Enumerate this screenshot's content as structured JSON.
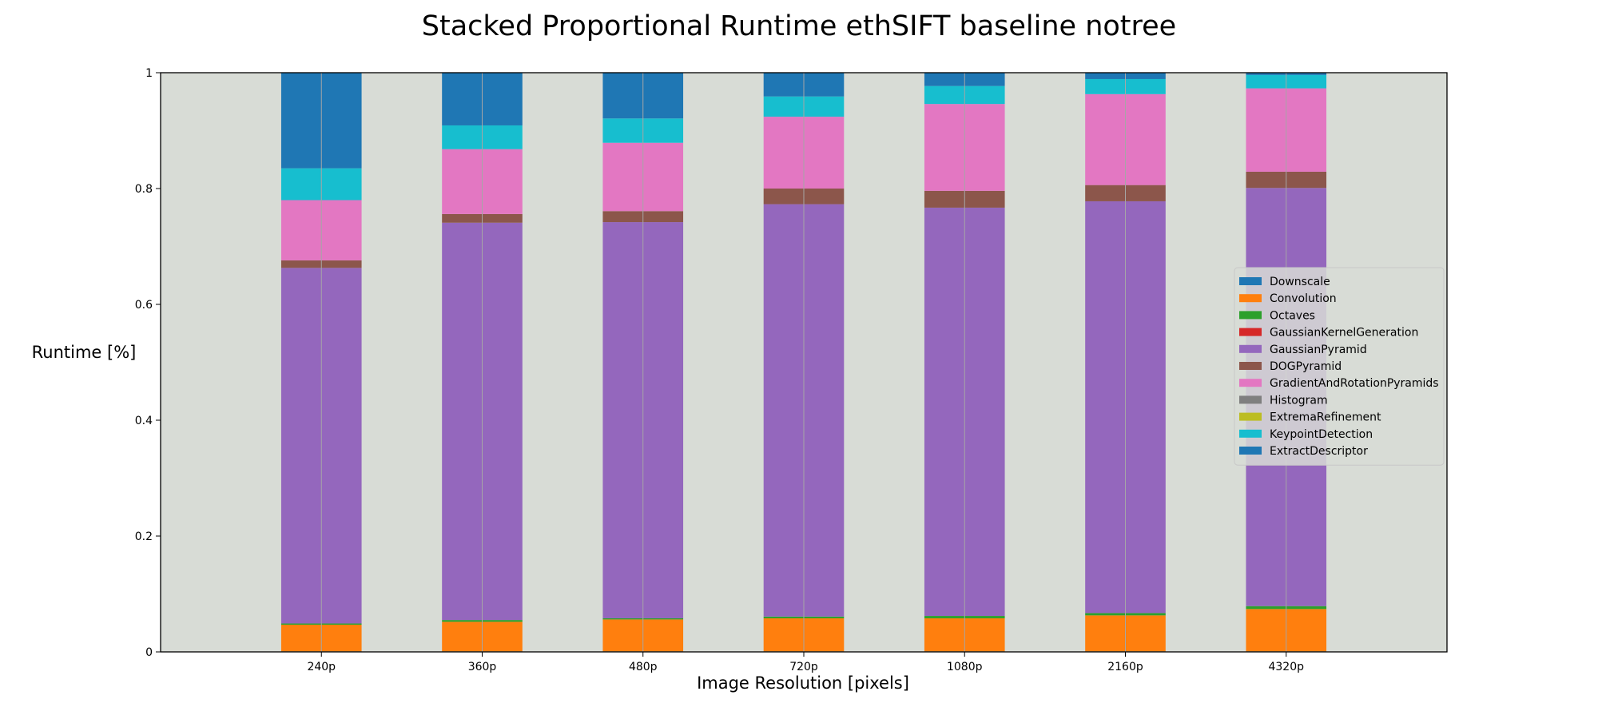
{
  "chart_data": {
    "type": "bar",
    "stacked": true,
    "title": "Stacked Proportional Runtime ethSIFT baseline notree",
    "xlabel": "Image Resolution [pixels]",
    "ylabel": "Runtime [%]",
    "ylim": [
      0,
      1
    ],
    "yticks": [
      0,
      0.2,
      0.4,
      0.6,
      0.8,
      1
    ],
    "ytick_labels": [
      "0",
      "0.2",
      "0.4",
      "0.6",
      "0.8",
      "1"
    ],
    "grid": "vertical",
    "legend_position": "right",
    "categories": [
      "240p",
      "360p",
      "480p",
      "720p",
      "1080p",
      "2160p",
      "4320p"
    ],
    "series": [
      {
        "name": "Downscale",
        "color": "#1f77b4",
        "values": [
          0.001,
          0.001,
          0.001,
          0.001,
          0.001,
          0.001,
          0.001
        ]
      },
      {
        "name": "Convolution",
        "color": "#ff7f0e",
        "values": [
          0.046,
          0.051,
          0.055,
          0.057,
          0.057,
          0.062,
          0.073
        ]
      },
      {
        "name": "Octaves",
        "color": "#2ca02c",
        "values": [
          0.002,
          0.003,
          0.002,
          0.003,
          0.004,
          0.004,
          0.005
        ]
      },
      {
        "name": "GaussianKernelGeneration",
        "color": "#d62728",
        "values": [
          0.0,
          0.0,
          0.0,
          0.0,
          0.0,
          0.0,
          0.0
        ]
      },
      {
        "name": "GaussianPyramid",
        "color": "#9467bd",
        "values": [
          0.614,
          0.686,
          0.684,
          0.712,
          0.705,
          0.711,
          0.722
        ]
      },
      {
        "name": "DOGPyramid",
        "color": "#8c564b",
        "values": [
          0.013,
          0.015,
          0.019,
          0.027,
          0.029,
          0.028,
          0.028
        ]
      },
      {
        "name": "GradientAndRotationPyramids",
        "color": "#e377c2",
        "values": [
          0.104,
          0.112,
          0.118,
          0.124,
          0.15,
          0.157,
          0.144
        ]
      },
      {
        "name": "Histogram",
        "color": "#7f7f7f",
        "values": [
          0.0,
          0.0,
          0.0,
          0.0,
          0.0,
          0.0,
          0.0
        ]
      },
      {
        "name": "ExtremaRefinement",
        "color": "#bcbd22",
        "values": [
          0.0,
          0.0,
          0.0,
          0.0,
          0.0,
          0.0,
          0.0
        ]
      },
      {
        "name": "KeypointDetection",
        "color": "#17becf",
        "values": [
          0.055,
          0.041,
          0.042,
          0.035,
          0.031,
          0.026,
          0.023
        ]
      },
      {
        "name": "ExtractDescriptor",
        "color": "#1f77b4",
        "values": [
          0.165,
          0.091,
          0.079,
          0.041,
          0.023,
          0.011,
          0.004
        ]
      }
    ]
  },
  "style": {
    "plot_background": "#d8dcd6",
    "gridline_color": "#a6a6a6"
  }
}
